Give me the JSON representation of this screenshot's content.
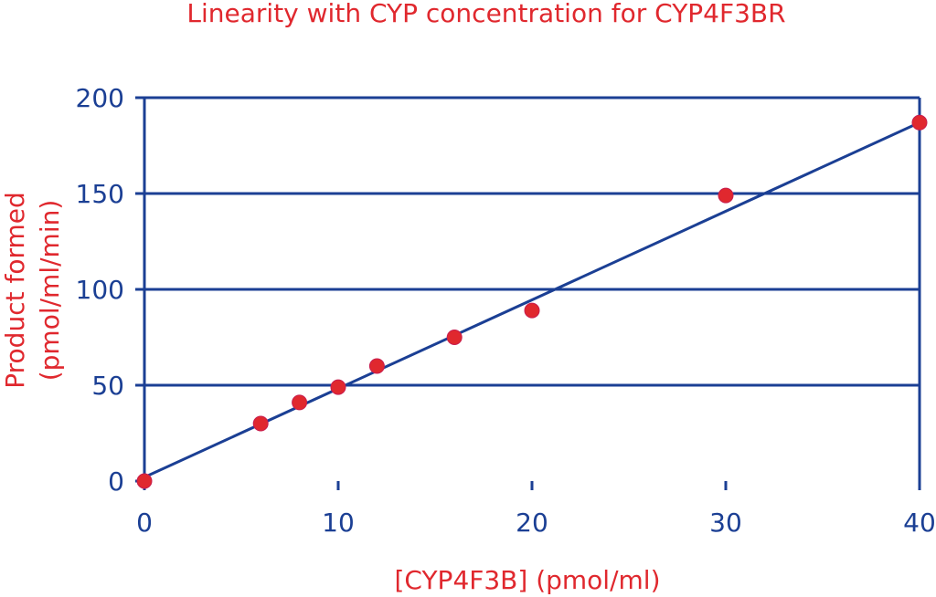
{
  "chart_data": {
    "type": "scatter",
    "title": "Linearity with CYP concentration for CYP4F3BR",
    "xlabel": "[CYP4F3B] (pmol/ml)",
    "ylabel_lines": [
      "Product formed",
      "(pmol/ml/min)"
    ],
    "xlim": [
      0,
      40
    ],
    "ylim": [
      0,
      200
    ],
    "x_ticks": [
      0,
      10,
      20,
      30,
      40
    ],
    "y_ticks": [
      0,
      50,
      100,
      150,
      200
    ],
    "grid": "horizontal",
    "series": [
      {
        "points": [
          {
            "x": 0,
            "y": 0
          },
          {
            "x": 6,
            "y": 30
          },
          {
            "x": 8,
            "y": 41
          },
          {
            "x": 10,
            "y": 49
          },
          {
            "x": 12,
            "y": 60
          },
          {
            "x": 16,
            "y": 75
          },
          {
            "x": 20,
            "y": 89
          },
          {
            "x": 30,
            "y": 149
          },
          {
            "x": 40,
            "y": 187
          }
        ]
      }
    ],
    "fit_line": {
      "x": [
        0,
        40
      ],
      "y": [
        2,
        187
      ]
    },
    "colors": {
      "title": "#e0282e",
      "axis_label": "#e0282e",
      "axis": "#1b3f94",
      "tick_label": "#1b3f94",
      "marker": "#e0282e",
      "marker_stroke": "#c81d4e",
      "fit_line": "#1b3f94"
    }
  }
}
